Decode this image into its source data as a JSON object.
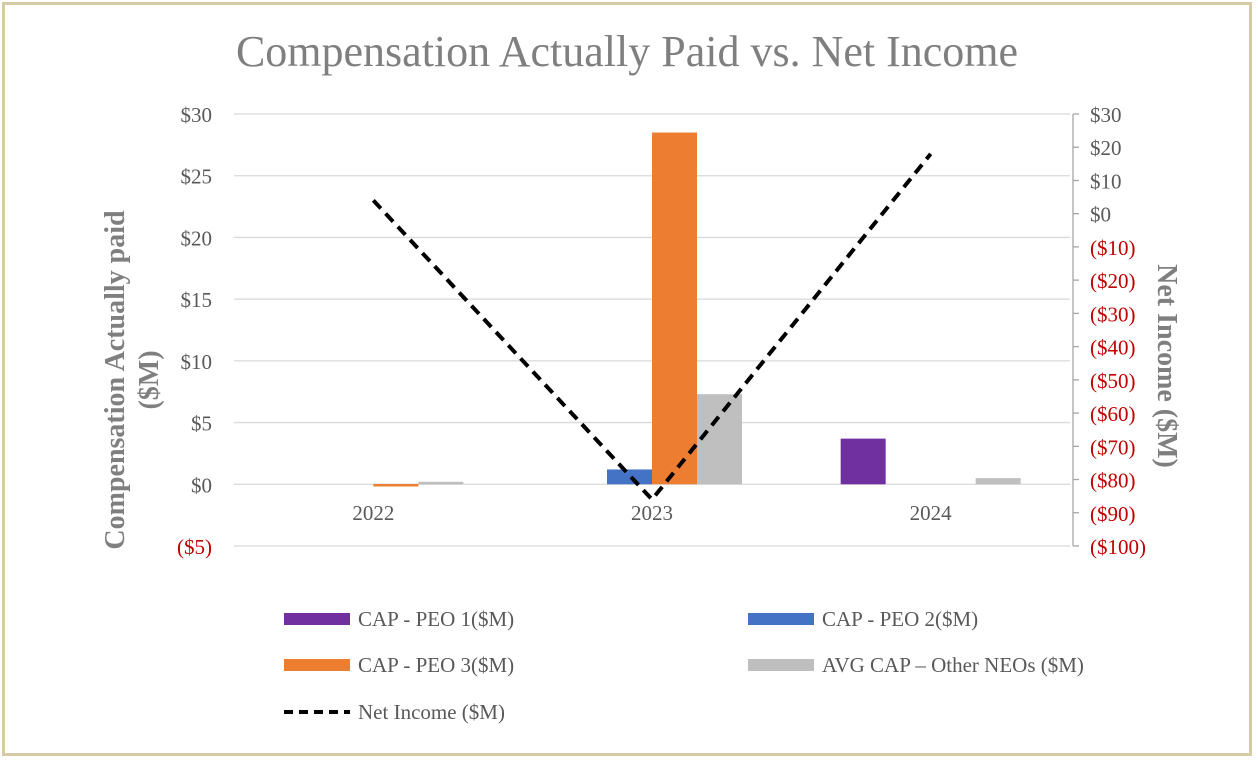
{
  "chart_data": {
    "type": "bar",
    "title": "Compensation Actually Paid vs. Net Income",
    "categories": [
      "2022",
      "2023",
      "2024"
    ],
    "ylabel_left": [
      "Compensation Actually paid",
      "($M)"
    ],
    "ylabel_right": "Net Income ($M)",
    "left_axis": {
      "ylim": [
        -5,
        30
      ],
      "ticks": [
        30,
        25,
        20,
        15,
        10,
        5,
        0,
        -5
      ],
      "tick_labels": [
        "$30",
        "$25",
        "$20",
        "$15",
        "$10",
        "$5",
        "$0",
        "($5)"
      ]
    },
    "right_axis": {
      "ylim": [
        -100,
        30
      ],
      "ticks": [
        30,
        20,
        10,
        0,
        -10,
        -20,
        -30,
        -40,
        -50,
        -60,
        -70,
        -80,
        -90,
        -100
      ],
      "tick_labels": [
        "$30",
        "$20",
        "$10",
        "$0",
        "($10)",
        "($20)",
        "($30)",
        "($40)",
        "($50)",
        "($60)",
        "($70)",
        "($80)",
        "($90)",
        "($100)"
      ]
    },
    "series": [
      {
        "name": "CAP - PEO 1($M)",
        "color": "#7030a0",
        "axis": "left",
        "values": [
          0,
          0,
          3.7
        ]
      },
      {
        "name": "CAP - PEO 2($M)",
        "color": "#4472c4",
        "axis": "left",
        "values": [
          0,
          1.2,
          0
        ]
      },
      {
        "name": "CAP - PEO 3($M)",
        "color": "#ed7d31",
        "axis": "left",
        "values": [
          -0.2,
          28.5,
          0
        ]
      },
      {
        "name": "AVG CAP – Other NEOs ($M)",
        "color": "#bfbfbf",
        "axis": "left",
        "values": [
          0.2,
          7.3,
          0.5
        ]
      }
    ],
    "line_series": {
      "name": "Net Income ($M)",
      "color": "#000000",
      "axis": "right",
      "style": "dashed",
      "values": [
        4,
        -86,
        18
      ]
    },
    "grid": true,
    "legend_position": "bottom"
  },
  "colors": {
    "negative_tick": "#c00000",
    "tick": "#595959",
    "title": "#7f7f7f",
    "border": "#d6cca4"
  }
}
